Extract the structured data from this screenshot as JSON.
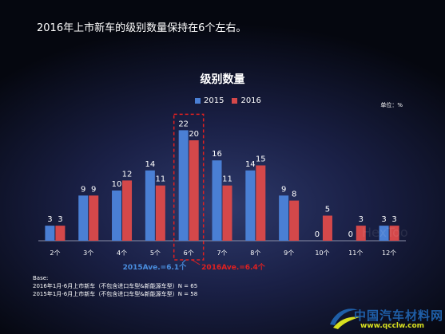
{
  "headline": "2016年上市新车的级别数量保持在6个左右。",
  "chart_data": {
    "type": "bar",
    "title": "级别数量",
    "unit_label": "单位：%",
    "categories": [
      "2个",
      "3个",
      "4个",
      "5个",
      "6个",
      "7个",
      "8个",
      "9个",
      "10个",
      "11个",
      "12个"
    ],
    "series": [
      {
        "name": "2015",
        "color": "#4a7fd4",
        "values": [
          3,
          9,
          10,
          14,
          22,
          16,
          14,
          9,
          0,
          0,
          3
        ]
      },
      {
        "name": "2016",
        "color": "#d4484a",
        "values": [
          3,
          9,
          12,
          11,
          20,
          11,
          15,
          8,
          5,
          3,
          3
        ]
      }
    ],
    "ylim": [
      0,
      25
    ],
    "legend_position": "top-center",
    "grid": false,
    "highlight_category": "6个",
    "highlight_color": "#e02020",
    "annotations": [
      {
        "text": "2015Ave.=6.1个",
        "color": "#4a8fe0"
      },
      {
        "text": "2016Ave.=6.4个",
        "color": "#e02020"
      }
    ]
  },
  "base": {
    "label": "Base:",
    "lines": [
      "2016年1月-6月上市新车（不包含进口车型&新能源车型）N = 65",
      "2015年1月-6月上市新车（不包含进口车型&新能源车型）N = 58"
    ]
  },
  "watermark": "HexToo",
  "logo": {
    "name": "中国汽车材料网",
    "url": "www.qcclw.com"
  }
}
